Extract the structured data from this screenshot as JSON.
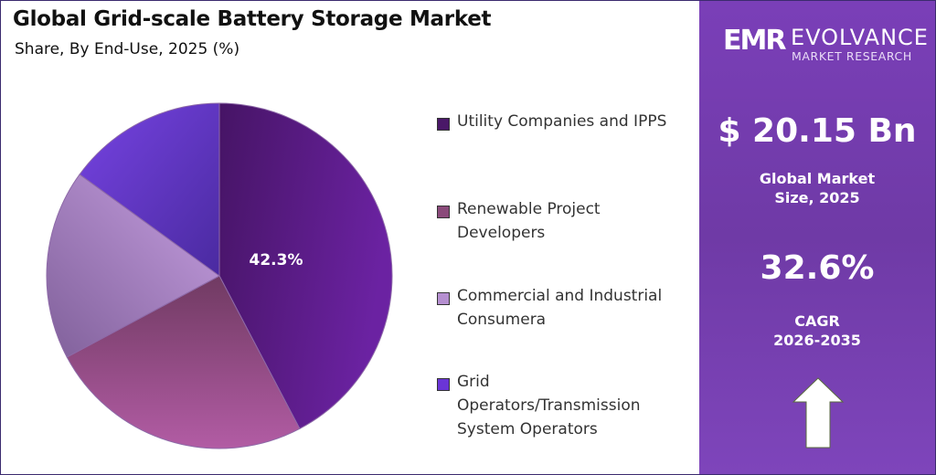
{
  "header": {
    "title": "Global Grid-scale Battery Storage Market",
    "subtitle": "Share, By End-Use, 2025 (%)"
  },
  "chart_data": {
    "type": "pie",
    "title": "Global Grid-scale Battery Storage Market",
    "subtitle": "Share, By End-Use, 2025 (%)",
    "categories": [
      "Utility Companies and IPPS",
      "Renewable Project Developers",
      "Commercial and Industrial Consumera",
      "Grid Operators/Transmission System Operators"
    ],
    "values": [
      42.3,
      24.9,
      17.8,
      15.0
    ],
    "data_labels": [
      "42.3%",
      "",
      "",
      ""
    ],
    "colors": [
      "#5a1d8a",
      "#9a4f8e",
      "#b994d4",
      "#6a3ad0"
    ],
    "legend_position": "right"
  },
  "legend": [
    {
      "label": "Utility Companies and IPPS",
      "color": "#4a1868"
    },
    {
      "label": "Renewable Project Developers",
      "color": "#8a4a7a"
    },
    {
      "label": "Commercial and Industrial Consumera",
      "color": "#b58fd0"
    },
    {
      "label": "Grid Operators/Transmission System Operators",
      "color": "#6a35d6"
    }
  ],
  "panel": {
    "logo": {
      "mark": "EMR",
      "name": "EVOLVANCE",
      "sub": "MARKET RESEARCH"
    },
    "market_value": "$ 20.15 Bn",
    "market_label_1": "Global Market",
    "market_label_2": "Size, 2025",
    "cagr": "32.6%",
    "cagr_label_1": "CAGR",
    "cagr_label_2": "2026-2035",
    "arrow_icon": "up-arrow",
    "accent": "#7a3fb8"
  }
}
